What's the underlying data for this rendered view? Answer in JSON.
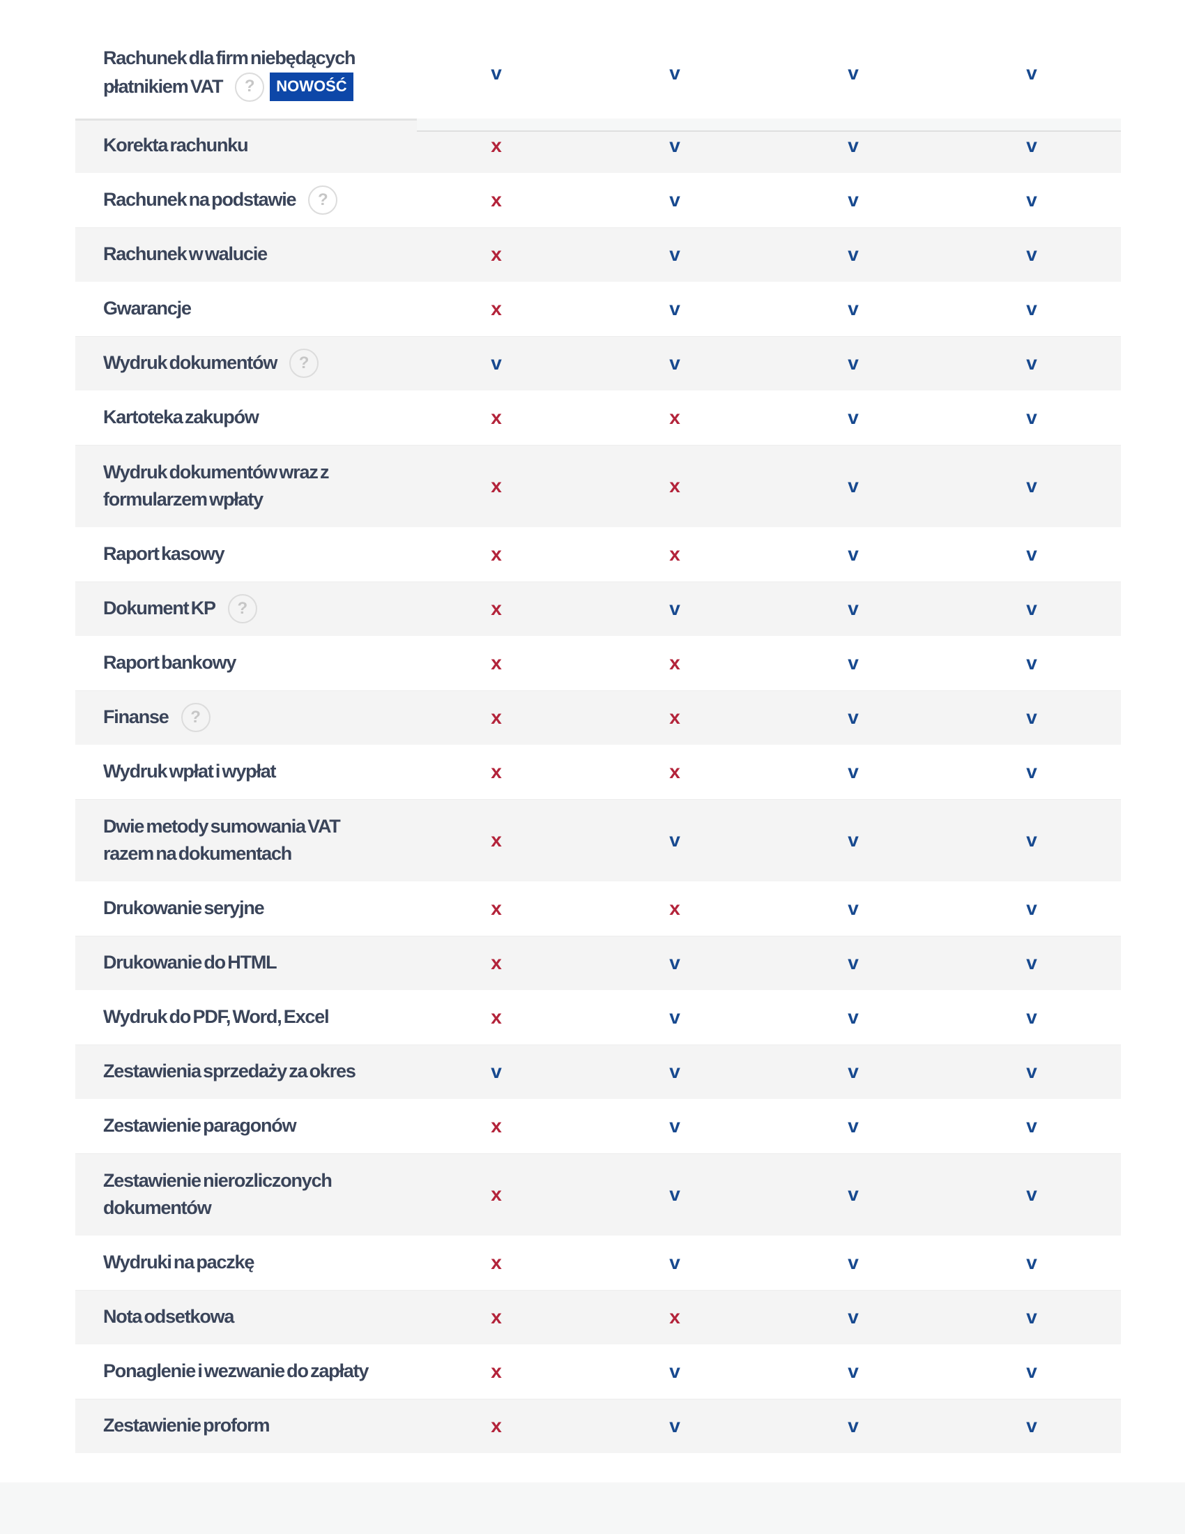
{
  "table": {
    "columns": 4,
    "marks": {
      "available": "v",
      "unavailable": "x"
    },
    "colors": {
      "available": "#17498f",
      "unavailable": "#b3233a",
      "badge_bg": "#0d47a8",
      "badge_text": "#ffffff",
      "label_text": "#3a4459"
    },
    "help_glyph": "?",
    "badge_label": "NOWOŚĆ",
    "rows": [
      {
        "lines": [
          "Rachunek dla firm niebędących",
          "płatnikiem VAT"
        ],
        "help": true,
        "badge": true,
        "shaded": false,
        "values": [
          "available",
          "available",
          "available",
          "available"
        ]
      },
      {
        "lines": [
          "Korekta rachunku"
        ],
        "shaded": true,
        "values": [
          "unavailable",
          "available",
          "available",
          "available"
        ]
      },
      {
        "lines": [
          "Rachunek na podstawie"
        ],
        "help": true,
        "shaded": false,
        "values": [
          "unavailable",
          "available",
          "available",
          "available"
        ]
      },
      {
        "lines": [
          "Rachunek w walucie"
        ],
        "shaded": true,
        "values": [
          "unavailable",
          "available",
          "available",
          "available"
        ]
      },
      {
        "lines": [
          "Gwarancje"
        ],
        "shaded": false,
        "values": [
          "unavailable",
          "available",
          "available",
          "available"
        ]
      },
      {
        "lines": [
          "Wydruk dokumentów"
        ],
        "help": true,
        "shaded": true,
        "values": [
          "available",
          "available",
          "available",
          "available"
        ]
      },
      {
        "lines": [
          "Kartoteka zakupów"
        ],
        "shaded": false,
        "values": [
          "unavailable",
          "unavailable",
          "available",
          "available"
        ]
      },
      {
        "lines": [
          "Wydruk dokumentów wraz z",
          "formularzem wpłaty"
        ],
        "shaded": true,
        "values": [
          "unavailable",
          "unavailable",
          "available",
          "available"
        ]
      },
      {
        "lines": [
          "Raport kasowy"
        ],
        "shaded": false,
        "values": [
          "unavailable",
          "unavailable",
          "available",
          "available"
        ]
      },
      {
        "lines": [
          "Dokument KP"
        ],
        "help": true,
        "shaded": true,
        "values": [
          "unavailable",
          "available",
          "available",
          "available"
        ]
      },
      {
        "lines": [
          "Raport bankowy"
        ],
        "shaded": false,
        "values": [
          "unavailable",
          "unavailable",
          "available",
          "available"
        ]
      },
      {
        "lines": [
          "Finanse"
        ],
        "help": true,
        "shaded": true,
        "values": [
          "unavailable",
          "unavailable",
          "available",
          "available"
        ]
      },
      {
        "lines": [
          "Wydruk wpłat i wypłat"
        ],
        "shaded": false,
        "values": [
          "unavailable",
          "unavailable",
          "available",
          "available"
        ]
      },
      {
        "lines": [
          "Dwie metody sumowania VAT",
          "razem na dokumentach"
        ],
        "shaded": true,
        "values": [
          "unavailable",
          "available",
          "available",
          "available"
        ]
      },
      {
        "lines": [
          "Drukowanie seryjne"
        ],
        "shaded": false,
        "values": [
          "unavailable",
          "unavailable",
          "available",
          "available"
        ]
      },
      {
        "lines": [
          "Drukowanie do HTML"
        ],
        "shaded": true,
        "values": [
          "unavailable",
          "available",
          "available",
          "available"
        ]
      },
      {
        "lines": [
          "Wydruk do PDF, Word, Excel"
        ],
        "shaded": false,
        "values": [
          "unavailable",
          "available",
          "available",
          "available"
        ]
      },
      {
        "lines": [
          "Zestawienia sprzedaży za okres"
        ],
        "shaded": true,
        "values": [
          "available",
          "available",
          "available",
          "available"
        ]
      },
      {
        "lines": [
          "Zestawienie paragonów"
        ],
        "shaded": false,
        "values": [
          "unavailable",
          "available",
          "available",
          "available"
        ]
      },
      {
        "lines": [
          "Zestawienie nierozliczonych",
          "dokumentów"
        ],
        "shaded": true,
        "values": [
          "unavailable",
          "available",
          "available",
          "available"
        ]
      },
      {
        "lines": [
          "Wydruki na paczkę"
        ],
        "shaded": false,
        "values": [
          "unavailable",
          "available",
          "available",
          "available"
        ]
      },
      {
        "lines": [
          "Nota odsetkowa"
        ],
        "shaded": true,
        "values": [
          "unavailable",
          "unavailable",
          "available",
          "available"
        ]
      },
      {
        "lines": [
          "Ponaglenie i wezwanie do zapłaty"
        ],
        "shaded": false,
        "values": [
          "unavailable",
          "available",
          "available",
          "available"
        ]
      },
      {
        "lines": [
          "Zestawienie proform"
        ],
        "shaded": true,
        "values": [
          "unavailable",
          "available",
          "available",
          "available"
        ]
      }
    ]
  }
}
